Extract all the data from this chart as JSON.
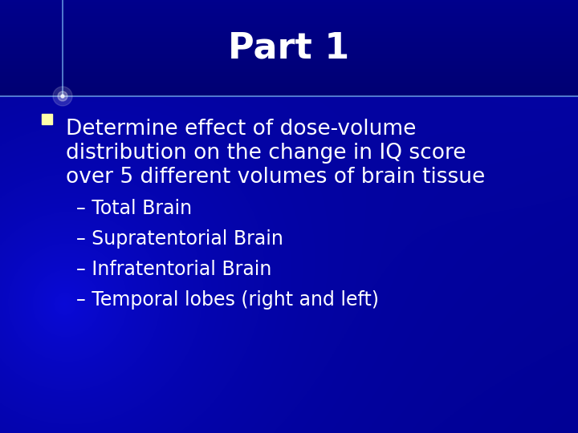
{
  "title": "Part 1",
  "title_fontsize": 32,
  "title_color": "#FFFFFF",
  "bg_dark": "#000090",
  "bg_darker": "#000070",
  "bullet_lines": [
    "Determine effect of dose-volume",
    "distribution on the change in IQ score",
    "over 5 different volumes of brain tissue"
  ],
  "bullet_fontsize": 19,
  "bullet_color": "#FFFFFF",
  "sub_bullets": [
    "– Total Brain",
    "– Supratentorial Brain",
    "– Infratentorial Brain",
    "– Temporal lobes (right and left)"
  ],
  "sub_bullet_fontsize": 17,
  "sub_bullet_color": "#FFFFFF",
  "bullet_square_color": "#FFFFAA",
  "accent_line_color": "#4488FF",
  "figsize": [
    7.2,
    5.4
  ],
  "dpi": 100
}
